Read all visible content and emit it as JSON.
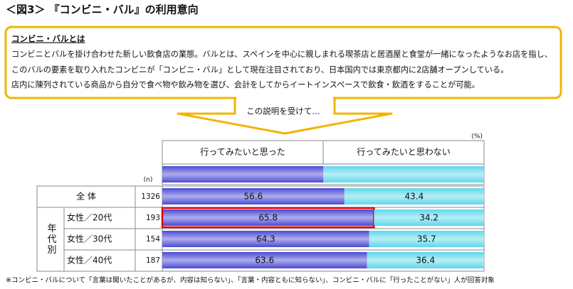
{
  "title": "＜図3＞ 『コンビニ・バル』の利用意向",
  "box": {
    "heading": "コンビニ・バルとは",
    "lines": [
      "コンビニとバルを掛け合わせた新しい飲食店の業態。バルとは、スペインを中心に親しまれる喫茶店と居酒屋と食堂が一緒になったようなお店を指し、",
      "このバルの要素を取り入れたコンビニが「コンビニ・バル」として現在注目されており、日本国内では東京都内に2店舗オープンしている。",
      "店内に陳列されている商品から自分で食べ物や飲み物を選び、会計をしてからイートインスペースで飲食・飲酒をすることが可能。"
    ]
  },
  "arrow_text": "この説明を受けて…",
  "chart_data": {
    "type": "stacked-bar",
    "orientation": "horizontal",
    "unit": "(%)",
    "n_label": "(n)",
    "group_label": "年代別",
    "categories": [
      "全 体",
      "女性／20代",
      "女性／30代",
      "女性／40代"
    ],
    "n": [
      1326,
      193,
      154,
      187
    ],
    "series": [
      {
        "name": "行ってみたいと思った",
        "color": "#4b4bd6",
        "values": [
          56.6,
          65.8,
          64.3,
          63.6
        ]
      },
      {
        "name": "行ってみたいと思わない",
        "color": "#5fd8ec",
        "values": [
          43.4,
          34.2,
          35.7,
          36.4
        ]
      }
    ],
    "xlim": [
      0,
      100
    ],
    "highlight": {
      "series": 0,
      "index": 1,
      "color": "#e00000"
    }
  },
  "footnote": "※コンビニ・バルについて「言葉は聞いたことがあるが、内容は知らない」、「言葉・内容ともに知らない」、コンビニ・バルに「行ったことがない」人が回答対象"
}
